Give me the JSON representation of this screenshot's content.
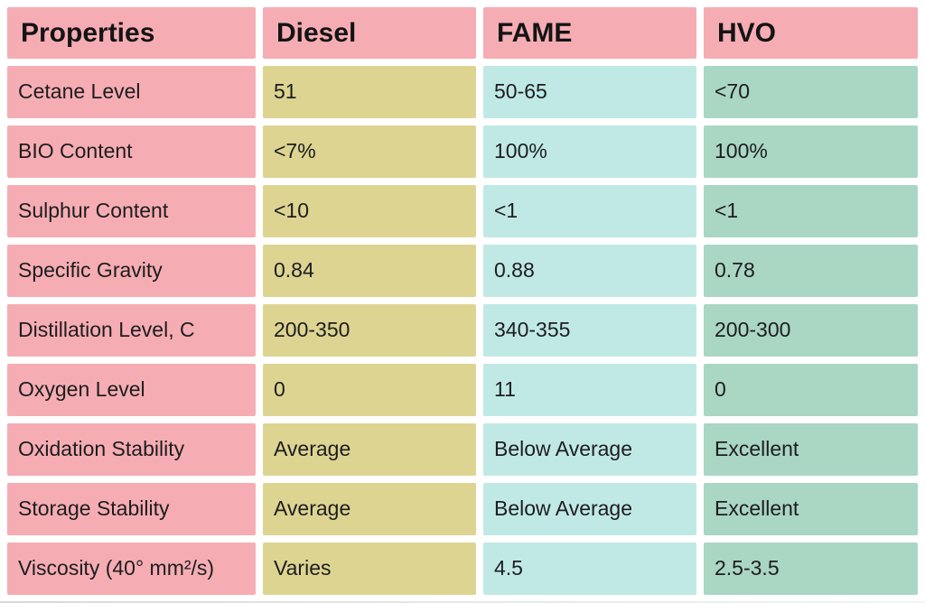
{
  "chart_data": {
    "type": "table",
    "columns": [
      "Properties",
      "Diesel",
      "FAME",
      "HVO"
    ],
    "rows": [
      [
        "Cetane Level",
        "51",
        "50-65",
        "<70"
      ],
      [
        "BIO Content",
        "<7%",
        "100%",
        "100%"
      ],
      [
        "Sulphur Content",
        "<10",
        "<1",
        "<1"
      ],
      [
        "Specific Gravity",
        "0.84",
        "0.88",
        "0.78"
      ],
      [
        "Distillation Level, C",
        "200-350",
        "340-355",
        "200-300"
      ],
      [
        "Oxygen Level",
        "0",
        "11",
        "0"
      ],
      [
        "Oxidation Stability",
        "Average",
        "Below Average",
        "Excellent"
      ],
      [
        "Storage Stability",
        "Average",
        "Below Average",
        "Excellent"
      ],
      [
        "Viscosity (40° mm²/s)",
        "Varies",
        "4.5",
        "2.5-3.5"
      ]
    ],
    "layout": {
      "legend": "none",
      "grid": "off",
      "style": "color-coded comparison table with white gutters between cells"
    }
  },
  "colors": {
    "properties_column": "#f5adb3",
    "diesel_column": "#ddd492",
    "fame_column": "#c0e9e5",
    "hvo_column": "#aad6c4",
    "header_row": "#f5adb3",
    "text": "#1d1d1f",
    "background": "#ffffff"
  }
}
